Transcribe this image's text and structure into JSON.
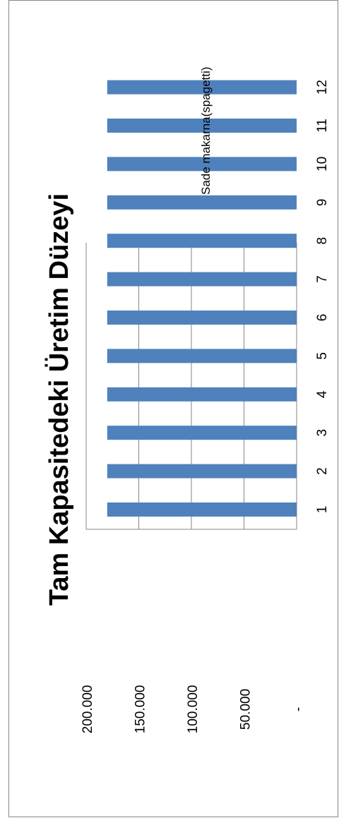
{
  "chart_data": {
    "type": "bar",
    "title": "Tam Kapasitedeki Üretim Düzeyi",
    "xlabel": "",
    "ylabel": "",
    "categories": [
      "1",
      "2",
      "3",
      "4",
      "5",
      "6",
      "7",
      "8",
      "9",
      "10",
      "11",
      "12"
    ],
    "series": [
      {
        "name": "Sade makarna(spagetti)",
        "values": [
          180000,
          180000,
          180000,
          180000,
          180000,
          180000,
          180000,
          180000,
          180000,
          180000,
          180000,
          180000
        ]
      }
    ],
    "ylim": [
      0,
      200000
    ],
    "y_ticks": [
      0,
      50000,
      100000,
      150000,
      200000
    ],
    "y_tick_labels": [
      "-",
      "50.000",
      "100.000",
      "150.000",
      "200.000"
    ],
    "grid": true,
    "legend_position": "right",
    "colors": {
      "series": "#4f81bd",
      "grid": "#868686",
      "border": "#868686",
      "text": "#000000"
    }
  }
}
